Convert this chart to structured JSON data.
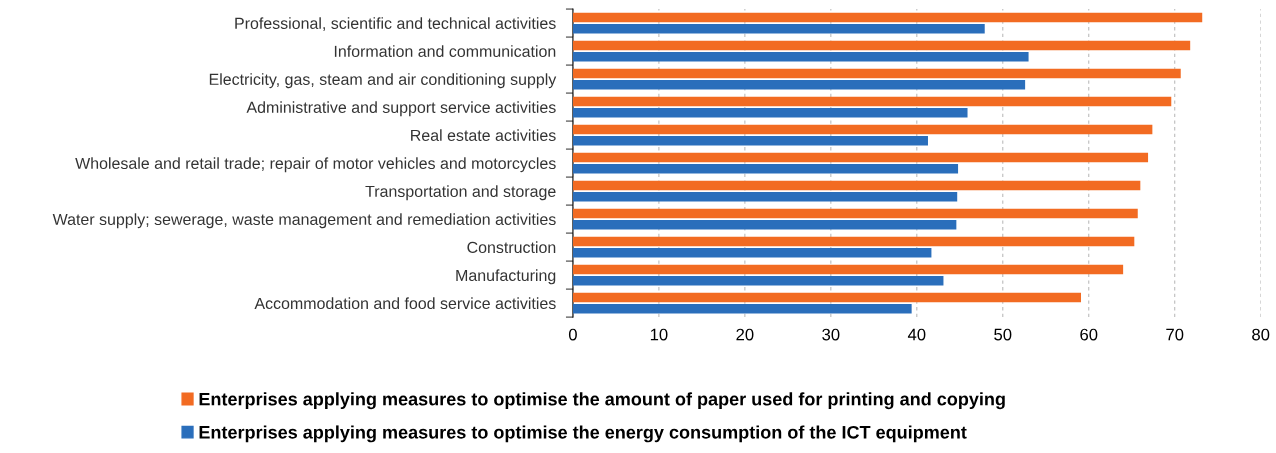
{
  "chart_data": {
    "type": "bar",
    "orientation": "horizontal",
    "categories": [
      "Professional, scientific and technical activities",
      "Information and communication",
      "Electricity, gas, steam and air conditioning supply",
      "Administrative and support service activities",
      "Real estate activities",
      "Wholesale and retail trade; repair of motor vehicles and motorcycles",
      "Transportation and storage",
      "Water supply; sewerage, waste management and remediation activities",
      "Construction",
      "Manufacturing",
      "Accommodation and food service activities"
    ],
    "series": [
      {
        "name": "Enterprises applying measures to optimise the amount of paper used for printing and copying",
        "color": "#f26b22",
        "values": [
          73.2,
          71.8,
          70.7,
          69.6,
          67.4,
          66.9,
          66.0,
          65.7,
          65.3,
          64.0,
          59.1
        ]
      },
      {
        "name": "Enterprises applying measures to optimise the energy consumption of the ICT equipment",
        "color": "#2a6ebb",
        "values": [
          47.9,
          53.0,
          52.6,
          45.9,
          41.3,
          44.8,
          44.7,
          44.6,
          41.7,
          43.1,
          39.4
        ]
      }
    ],
    "xlim": [
      0,
      80
    ],
    "xticks": [
      0,
      10,
      20,
      30,
      40,
      50,
      60,
      70,
      80
    ],
    "grid": "x",
    "legend": "bottom"
  }
}
